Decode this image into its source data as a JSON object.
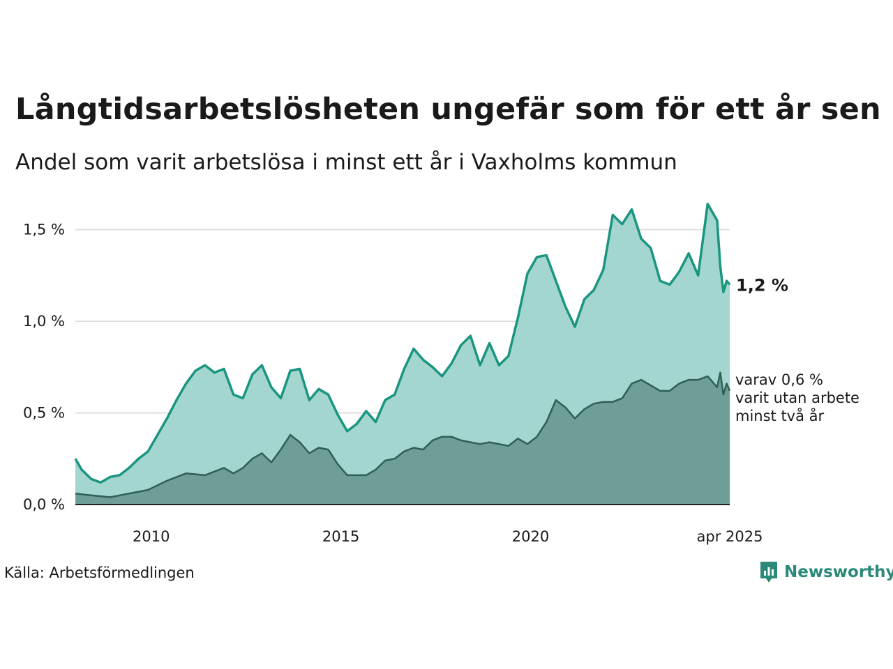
{
  "title": "Långtidsarbetslösheten ungefär som för ett år sen",
  "subtitle": "Andel som varit arbetslösa i minst ett år i Vaxholms kommun",
  "source": "Källa: Arbetsförmedlingen",
  "logo_text": "Newsworthy",
  "colors": {
    "total_line": "#1a9580",
    "total_fill": "#a3d6cf",
    "twoyear_line": "#2f5f55",
    "twoyear_fill": "#6e9f96",
    "grid": "#dddddd"
  },
  "chart_data": {
    "type": "area",
    "title": "Långtidsarbetslösheten ungefär som för ett år sen",
    "subtitle": "Andel som varit arbetslösa i minst ett år i Vaxholms kommun",
    "x_range": [
      "2008-01",
      "2025-04"
    ],
    "x_ticks": [
      "2010",
      "2015",
      "2020",
      "apr 2025"
    ],
    "y_range": [
      0,
      1.65
    ],
    "y_ticks": [
      "0,0 %",
      "0,5 %",
      "1,0 %",
      "1,5 %"
    ],
    "grid": "horizontal",
    "end_label": "1,2 %",
    "sub_label": [
      "varav 0,6 %",
      "varit utan arbete",
      "minst två år"
    ],
    "series": [
      {
        "name": "Minst ett år",
        "points": [
          [
            "2008-01",
            0.25
          ],
          [
            "2008-03",
            0.19
          ],
          [
            "2008-06",
            0.14
          ],
          [
            "2008-09",
            0.12
          ],
          [
            "2008-12",
            0.15
          ],
          [
            "2009-03",
            0.16
          ],
          [
            "2009-06",
            0.2
          ],
          [
            "2009-09",
            0.25
          ],
          [
            "2009-12",
            0.29
          ],
          [
            "2010-03",
            0.38
          ],
          [
            "2010-06",
            0.47
          ],
          [
            "2010-09",
            0.57
          ],
          [
            "2010-12",
            0.66
          ],
          [
            "2011-03",
            0.73
          ],
          [
            "2011-06",
            0.76
          ],
          [
            "2011-09",
            0.72
          ],
          [
            "2011-12",
            0.74
          ],
          [
            "2012-03",
            0.6
          ],
          [
            "2012-06",
            0.58
          ],
          [
            "2012-09",
            0.71
          ],
          [
            "2012-12",
            0.76
          ],
          [
            "2013-03",
            0.64
          ],
          [
            "2013-06",
            0.58
          ],
          [
            "2013-09",
            0.73
          ],
          [
            "2013-12",
            0.74
          ],
          [
            "2014-03",
            0.57
          ],
          [
            "2014-06",
            0.63
          ],
          [
            "2014-09",
            0.6
          ],
          [
            "2014-12",
            0.49
          ],
          [
            "2015-03",
            0.4
          ],
          [
            "2015-06",
            0.44
          ],
          [
            "2015-09",
            0.51
          ],
          [
            "2015-12",
            0.45
          ],
          [
            "2016-03",
            0.57
          ],
          [
            "2016-06",
            0.6
          ],
          [
            "2016-09",
            0.74
          ],
          [
            "2016-12",
            0.85
          ],
          [
            "2017-03",
            0.79
          ],
          [
            "2017-06",
            0.75
          ],
          [
            "2017-09",
            0.7
          ],
          [
            "2017-12",
            0.77
          ],
          [
            "2018-03",
            0.87
          ],
          [
            "2018-06",
            0.92
          ],
          [
            "2018-09",
            0.76
          ],
          [
            "2018-12",
            0.88
          ],
          [
            "2019-03",
            0.76
          ],
          [
            "2019-06",
            0.81
          ],
          [
            "2019-09",
            1.02
          ],
          [
            "2019-12",
            1.26
          ],
          [
            "2020-03",
            1.35
          ],
          [
            "2020-06",
            1.36
          ],
          [
            "2020-09",
            1.22
          ],
          [
            "2020-12",
            1.08
          ],
          [
            "2021-03",
            0.97
          ],
          [
            "2021-06",
            1.12
          ],
          [
            "2021-09",
            1.17
          ],
          [
            "2021-12",
            1.28
          ],
          [
            "2022-03",
            1.58
          ],
          [
            "2022-06",
            1.53
          ],
          [
            "2022-09",
            1.61
          ],
          [
            "2022-12",
            1.45
          ],
          [
            "2023-03",
            1.4
          ],
          [
            "2023-06",
            1.22
          ],
          [
            "2023-09",
            1.2
          ],
          [
            "2023-12",
            1.27
          ],
          [
            "2024-03",
            1.37
          ],
          [
            "2024-06",
            1.25
          ],
          [
            "2024-09",
            1.64
          ],
          [
            "2024-12",
            1.55
          ],
          [
            "2025-01",
            1.3
          ],
          [
            "2025-02",
            1.16
          ],
          [
            "2025-03",
            1.22
          ],
          [
            "2025-04",
            1.2
          ]
        ]
      },
      {
        "name": "Minst två år",
        "points": [
          [
            "2008-01",
            0.06
          ],
          [
            "2008-06",
            0.05
          ],
          [
            "2008-12",
            0.04
          ],
          [
            "2009-06",
            0.06
          ],
          [
            "2009-12",
            0.08
          ],
          [
            "2010-06",
            0.13
          ],
          [
            "2010-12",
            0.17
          ],
          [
            "2011-06",
            0.16
          ],
          [
            "2011-12",
            0.2
          ],
          [
            "2012-03",
            0.17
          ],
          [
            "2012-06",
            0.2
          ],
          [
            "2012-09",
            0.25
          ],
          [
            "2012-12",
            0.28
          ],
          [
            "2013-03",
            0.23
          ],
          [
            "2013-06",
            0.3
          ],
          [
            "2013-09",
            0.38
          ],
          [
            "2013-12",
            0.34
          ],
          [
            "2014-03",
            0.28
          ],
          [
            "2014-06",
            0.31
          ],
          [
            "2014-09",
            0.3
          ],
          [
            "2014-12",
            0.22
          ],
          [
            "2015-03",
            0.16
          ],
          [
            "2015-06",
            0.16
          ],
          [
            "2015-09",
            0.16
          ],
          [
            "2015-12",
            0.19
          ],
          [
            "2016-03",
            0.24
          ],
          [
            "2016-06",
            0.25
          ],
          [
            "2016-09",
            0.29
          ],
          [
            "2016-12",
            0.31
          ],
          [
            "2017-03",
            0.3
          ],
          [
            "2017-06",
            0.35
          ],
          [
            "2017-09",
            0.37
          ],
          [
            "2017-12",
            0.37
          ],
          [
            "2018-03",
            0.35
          ],
          [
            "2018-06",
            0.34
          ],
          [
            "2018-09",
            0.33
          ],
          [
            "2018-12",
            0.34
          ],
          [
            "2019-03",
            0.33
          ],
          [
            "2019-06",
            0.32
          ],
          [
            "2019-09",
            0.36
          ],
          [
            "2019-12",
            0.33
          ],
          [
            "2020-03",
            0.37
          ],
          [
            "2020-06",
            0.45
          ],
          [
            "2020-09",
            0.57
          ],
          [
            "2020-12",
            0.53
          ],
          [
            "2021-03",
            0.47
          ],
          [
            "2021-06",
            0.52
          ],
          [
            "2021-09",
            0.55
          ],
          [
            "2021-12",
            0.56
          ],
          [
            "2022-03",
            0.56
          ],
          [
            "2022-06",
            0.58
          ],
          [
            "2022-09",
            0.66
          ],
          [
            "2022-12",
            0.68
          ],
          [
            "2023-03",
            0.65
          ],
          [
            "2023-06",
            0.62
          ],
          [
            "2023-09",
            0.62
          ],
          [
            "2023-12",
            0.66
          ],
          [
            "2024-03",
            0.68
          ],
          [
            "2024-06",
            0.68
          ],
          [
            "2024-09",
            0.7
          ],
          [
            "2024-12",
            0.64
          ],
          [
            "2025-01",
            0.72
          ],
          [
            "2025-02",
            0.6
          ],
          [
            "2025-03",
            0.66
          ],
          [
            "2025-04",
            0.62
          ]
        ]
      }
    ]
  }
}
